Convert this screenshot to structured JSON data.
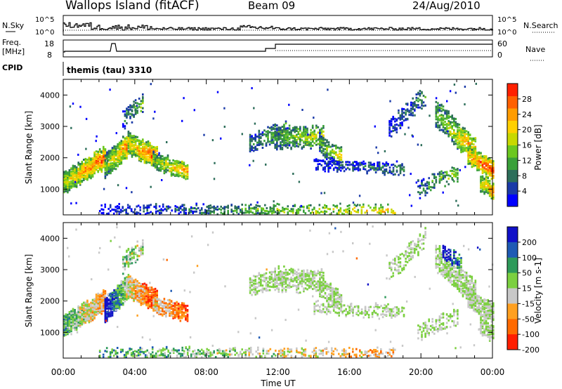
{
  "header": {
    "site": "Wallops Island (fitACF)",
    "beam": "Beam 09",
    "date": "24/Aug/2010"
  },
  "top_panels": {
    "nsky_label": "N.Sky",
    "nsearch_label": "N.Search",
    "noise_ticks_left": [
      "10^5",
      "10^0"
    ],
    "noise_ticks_right": [
      "10^5",
      "10^0"
    ],
    "freq_label_1": "Freq.",
    "freq_label_2": "[MHz]",
    "freq_ticks": [
      "18",
      "8"
    ],
    "nave_label": "Nave",
    "nave_ticks": [
      "60",
      "0"
    ],
    "cpid_label": "CPID",
    "cpid_value": "themis (tau) 3310"
  },
  "chart_data": [
    {
      "type": "heatmap",
      "name": "power",
      "ylabel": "Slant Range [km]",
      "xlabel": "",
      "y_ticks": [
        1000,
        2000,
        3000,
        4000
      ],
      "ylim": [
        180,
        4500
      ],
      "xlim_hours": [
        0,
        24
      ],
      "colorbar_label": "Power [dB]",
      "colorbar_ticks": [
        "4",
        "8",
        "12",
        "16",
        "20",
        "24",
        "28"
      ],
      "colorbar_colors": [
        "#0000ff",
        "#1a3aa8",
        "#2d6e5a",
        "#3aa03a",
        "#6cc820",
        "#c8d800",
        "#ffd000",
        "#ff9c00",
        "#ff6000",
        "#ff2000"
      ],
      "bands": [
        {
          "t": [
            0.0,
            2.3
          ],
          "r0": [
            1200,
            2000
          ],
          "w": 300,
          "c": [
            0.55,
            0.95
          ],
          "d": 0.9
        },
        {
          "t": [
            2.3,
            3.6
          ],
          "r0": [
            1700,
            2450
          ],
          "w": 360,
          "c": [
            0.45,
            0.85
          ],
          "d": 0.85
        },
        {
          "t": [
            3.6,
            5.2
          ],
          "r0": [
            2450,
            2000
          ],
          "w": 320,
          "c": [
            0.6,
            0.95
          ],
          "d": 0.9
        },
        {
          "t": [
            5.0,
            6.9
          ],
          "r0": [
            1900,
            1600
          ],
          "w": 220,
          "c": [
            0.45,
            0.8
          ],
          "d": 0.75
        },
        {
          "t": [
            3.3,
            4.4
          ],
          "r0": [
            3200,
            3700
          ],
          "w": 260,
          "c": [
            0.2,
            0.45
          ],
          "d": 0.4
        },
        {
          "t": [
            10.4,
            12.4
          ],
          "r0": [
            2450,
            2850
          ],
          "w": 280,
          "c": [
            0.25,
            0.55
          ],
          "d": 0.45
        },
        {
          "t": [
            11.8,
            14.5
          ],
          "r0": [
            2650,
            2650
          ],
          "w": 300,
          "c": [
            0.3,
            0.65
          ],
          "d": 0.55
        },
        {
          "t": [
            14.3,
            15.5
          ],
          "r0": [
            2450,
            2000
          ],
          "w": 260,
          "c": [
            0.35,
            0.65
          ],
          "d": 0.55
        },
        {
          "t": [
            14.0,
            19.0
          ],
          "r0": [
            1800,
            1650
          ],
          "w": 160,
          "c": [
            0.08,
            0.3
          ],
          "d": 0.4
        },
        {
          "t": [
            18.2,
            20.2
          ],
          "r0": [
            2900,
            4000
          ],
          "w": 260,
          "c": [
            0.1,
            0.35
          ],
          "d": 0.35
        },
        {
          "t": [
            20.8,
            23.0
          ],
          "r0": [
            3400,
            2200
          ],
          "w": 380,
          "c": [
            0.4,
            0.8
          ],
          "d": 0.65
        },
        {
          "t": [
            22.6,
            24.0
          ],
          "r0": [
            2100,
            1600
          ],
          "w": 260,
          "c": [
            0.7,
            1.0
          ],
          "d": 0.85
        },
        {
          "t": [
            19.8,
            22.0
          ],
          "r0": [
            1000,
            1500
          ],
          "w": 220,
          "c": [
            0.25,
            0.55
          ],
          "d": 0.35
        },
        {
          "t": [
            23.3,
            24.0
          ],
          "r0": [
            1200,
            950
          ],
          "w": 220,
          "c": [
            0.55,
            0.85
          ],
          "d": 0.8
        },
        {
          "t": [
            2.0,
            18.5
          ],
          "r0": [
            310,
            310
          ],
          "w": 150,
          "c": [
            0.05,
            0.7
          ],
          "d": 0.35
        }
      ]
    },
    {
      "type": "heatmap",
      "name": "velocity",
      "ylabel": "Slant Range [km]",
      "xlabel": "Time UT",
      "y_ticks": [
        1000,
        2000,
        3000,
        4000
      ],
      "ylim": [
        180,
        4500
      ],
      "xlim_hours": [
        0,
        24
      ],
      "x_ticks": [
        "00:00",
        "04:00",
        "08:00",
        "12:00",
        "16:00",
        "20:00",
        "00:00"
      ],
      "colorbar_label": "Velocity [m s-1]",
      "colorbar_ticks": [
        "200",
        "100",
        "50",
        "15",
        "-15",
        "-50",
        "-100",
        "-200"
      ],
      "colorbar_colors": [
        "#1010c8",
        "#1e5ab4",
        "#2e9a5a",
        "#7cd040",
        "#c8c8c8",
        "#ffa020",
        "#ff6a00",
        "#ff1e00"
      ],
      "bands": [
        {
          "t": [
            0.0,
            2.3
          ],
          "r0": [
            1200,
            2000
          ],
          "w": 300,
          "c": [
            0.35,
            0.7
          ],
          "d": 0.9
        },
        {
          "t": [
            2.3,
            3.6
          ],
          "r0": [
            1700,
            2450
          ],
          "w": 360,
          "c": [
            0.0,
            0.55
          ],
          "d": 0.85
        },
        {
          "t": [
            3.6,
            5.2
          ],
          "r0": [
            2450,
            2000
          ],
          "w": 320,
          "c": [
            0.55,
            0.9
          ],
          "d": 0.9
        },
        {
          "t": [
            5.0,
            6.9
          ],
          "r0": [
            1900,
            1600
          ],
          "w": 220,
          "c": [
            0.6,
            0.85
          ],
          "d": 0.75
        },
        {
          "t": [
            3.3,
            4.4
          ],
          "r0": [
            3200,
            3700
          ],
          "w": 260,
          "c": [
            0.45,
            0.5
          ],
          "d": 0.4
        },
        {
          "t": [
            10.4,
            12.4
          ],
          "r0": [
            2450,
            2850
          ],
          "w": 280,
          "c": [
            0.5,
            0.5
          ],
          "d": 0.45
        },
        {
          "t": [
            11.8,
            14.5
          ],
          "r0": [
            2650,
            2650
          ],
          "w": 300,
          "c": [
            0.5,
            0.5
          ],
          "d": 0.55
        },
        {
          "t": [
            14.3,
            15.5
          ],
          "r0": [
            2450,
            2000
          ],
          "w": 260,
          "c": [
            0.5,
            0.5
          ],
          "d": 0.55
        },
        {
          "t": [
            14.0,
            19.0
          ],
          "r0": [
            1800,
            1650
          ],
          "w": 160,
          "c": [
            0.5,
            0.5
          ],
          "d": 0.4
        },
        {
          "t": [
            18.2,
            20.2
          ],
          "r0": [
            2900,
            4000
          ],
          "w": 260,
          "c": [
            0.5,
            0.5
          ],
          "d": 0.35
        },
        {
          "t": [
            20.8,
            23.0
          ],
          "r0": [
            3400,
            2200
          ],
          "w": 380,
          "c": [
            0.5,
            0.5
          ],
          "d": 0.65
        },
        {
          "t": [
            22.6,
            24.0
          ],
          "r0": [
            2100,
            1600
          ],
          "w": 260,
          "c": [
            0.5,
            0.5
          ],
          "d": 0.85
        },
        {
          "t": [
            21.2,
            22.2
          ],
          "r0": [
            3600,
            3200
          ],
          "w": 200,
          "c": [
            0.0,
            0.3
          ],
          "d": 0.6
        },
        {
          "t": [
            19.8,
            22.0
          ],
          "r0": [
            1000,
            1500
          ],
          "w": 220,
          "c": [
            0.5,
            0.5
          ],
          "d": 0.35
        },
        {
          "t": [
            23.3,
            24.0
          ],
          "r0": [
            1200,
            950
          ],
          "w": 220,
          "c": [
            0.5,
            0.5
          ],
          "d": 0.8
        },
        {
          "t": [
            2.0,
            18.5
          ],
          "r0": [
            310,
            310
          ],
          "w": 150,
          "c": [
            0.3,
            0.7
          ],
          "d": 0.35
        }
      ]
    }
  ]
}
